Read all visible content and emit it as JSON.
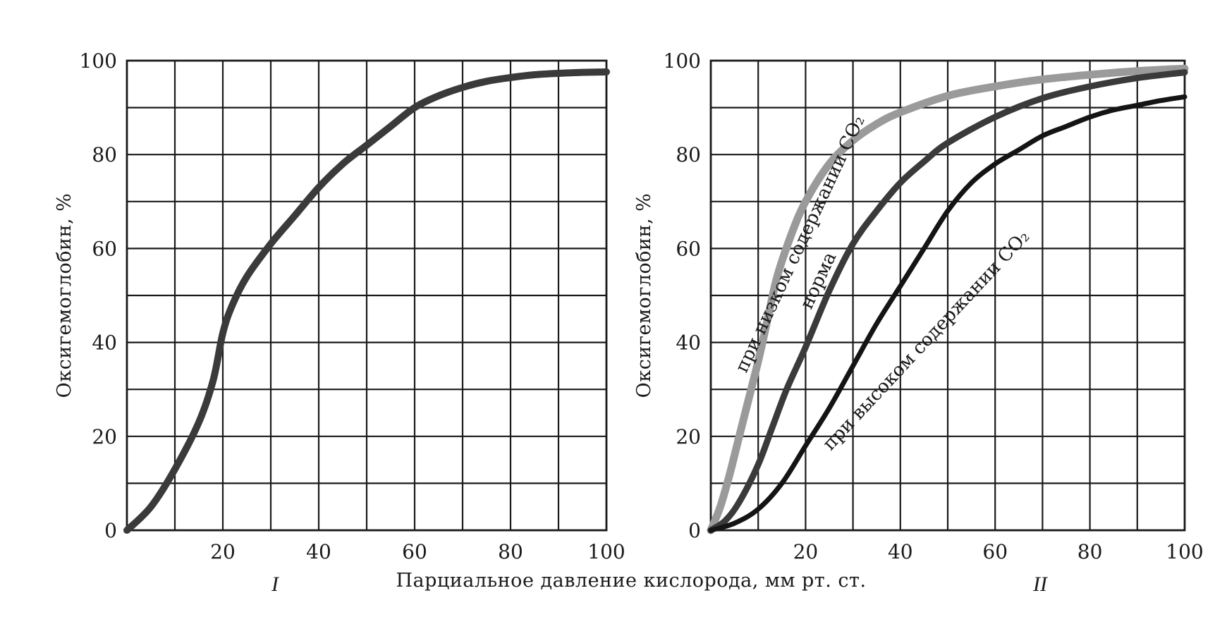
{
  "x_axis_label": "Парциальное давление кислорода, мм  рт. ст.",
  "chart_data": [
    {
      "type": "line",
      "panel_label": "I",
      "ylabel": "Оксигемоглобин, %",
      "xlim": [
        0,
        100
      ],
      "ylim": [
        0,
        100
      ],
      "x_ticks": [
        "20",
        "40",
        "60",
        "80",
        "100"
      ],
      "y_ticks": [
        "0",
        "20",
        "40",
        "60",
        "80",
        "100"
      ],
      "grid": true,
      "series": [
        {
          "color": "#3a3a3a",
          "points": [
            [
              0,
              0
            ],
            [
              5,
              5
            ],
            [
              10,
              13
            ],
            [
              15,
              23
            ],
            [
              18,
              32
            ],
            [
              20,
              42
            ],
            [
              22,
              48
            ],
            [
              25,
              54
            ],
            [
              30,
              61
            ],
            [
              35,
              67
            ],
            [
              40,
              73
            ],
            [
              45,
              78
            ],
            [
              50,
              82
            ],
            [
              55,
              86
            ],
            [
              60,
              90
            ],
            [
              65,
              92.5
            ],
            [
              70,
              94.3
            ],
            [
              75,
              95.6
            ],
            [
              80,
              96.4
            ],
            [
              85,
              97
            ],
            [
              90,
              97.3
            ],
            [
              95,
              97.5
            ],
            [
              100,
              97.6
            ]
          ]
        }
      ]
    },
    {
      "type": "line",
      "panel_label": "II",
      "ylabel": "Оксигемоглобин, %",
      "xlim": [
        0,
        100
      ],
      "ylim": [
        0,
        100
      ],
      "x_ticks": [
        "20",
        "40",
        "60",
        "80",
        "100"
      ],
      "y_ticks": [
        "0",
        "20",
        "40",
        "60",
        "80",
        "100"
      ],
      "grid": true,
      "series": [
        {
          "name": "при низком содержании CO₂",
          "color": "#9a9a9a",
          "points": [
            [
              0,
              0
            ],
            [
              2,
              5
            ],
            [
              4,
              12
            ],
            [
              6,
              20
            ],
            [
              8,
              28
            ],
            [
              10,
              36
            ],
            [
              12,
              45
            ],
            [
              14,
              54
            ],
            [
              17,
              63
            ],
            [
              20,
              70
            ],
            [
              25,
              78
            ],
            [
              30,
              83
            ],
            [
              35,
              86.5
            ],
            [
              40,
              89
            ],
            [
              50,
              92.5
            ],
            [
              60,
              94.5
            ],
            [
              70,
              96
            ],
            [
              80,
              97
            ],
            [
              90,
              97.8
            ],
            [
              100,
              98.3
            ]
          ]
        },
        {
          "name": "норма",
          "color": "#3a3a3a",
          "points": [
            [
              0,
              0
            ],
            [
              3,
              2
            ],
            [
              6,
              6
            ],
            [
              10,
              14
            ],
            [
              13,
              22
            ],
            [
              16,
              30
            ],
            [
              20,
              39
            ],
            [
              25,
              51
            ],
            [
              30,
              61
            ],
            [
              35,
              68
            ],
            [
              40,
              74
            ],
            [
              45,
              78.5
            ],
            [
              50,
              82.5
            ],
            [
              60,
              88
            ],
            [
              70,
              92
            ],
            [
              80,
              94.5
            ],
            [
              90,
              96.3
            ],
            [
              100,
              97.5
            ]
          ]
        },
        {
          "name": "при высоком содержании CO₂",
          "color": "#141414",
          "points": [
            [
              0,
              0
            ],
            [
              5,
              1.5
            ],
            [
              10,
              4.5
            ],
            [
              15,
              10
            ],
            [
              20,
              18
            ],
            [
              25,
              26
            ],
            [
              30,
              35
            ],
            [
              35,
              44
            ],
            [
              40,
              52
            ],
            [
              45,
              60
            ],
            [
              50,
              68
            ],
            [
              55,
              74
            ],
            [
              60,
              78
            ],
            [
              65,
              81
            ],
            [
              70,
              84
            ],
            [
              75,
              86
            ],
            [
              80,
              88
            ],
            [
              85,
              89.5
            ],
            [
              90,
              90.5
            ],
            [
              95,
              91.5
            ],
            [
              100,
              92.3
            ]
          ]
        }
      ]
    }
  ]
}
